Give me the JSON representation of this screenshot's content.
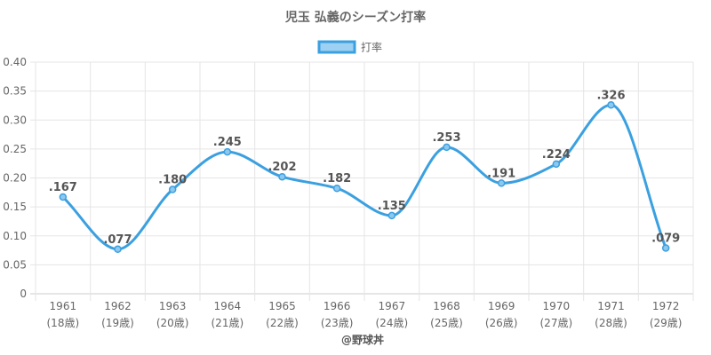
{
  "chart_data": {
    "type": "line",
    "title": "児玉 弘義のシーズン打率",
    "legend": {
      "placement": "top-center",
      "entries": [
        "打率"
      ]
    },
    "categories": [
      "1961",
      "1962",
      "1963",
      "1964",
      "1965",
      "1966",
      "1967",
      "1968",
      "1969",
      "1970",
      "1971",
      "1972"
    ],
    "category_sublabels": [
      "(18歳)",
      "(19歳)",
      "(20歳)",
      "(21歳)",
      "(22歳)",
      "(23歳)",
      "(24歳)",
      "(25歳)",
      "(26歳)",
      "(27歳)",
      "(28歳)",
      "(29歳)"
    ],
    "series": [
      {
        "name": "打率",
        "values": [
          0.167,
          0.077,
          0.18,
          0.245,
          0.202,
          0.182,
          0.135,
          0.253,
          0.191,
          0.224,
          0.326,
          0.079
        ],
        "labels": [
          ".167",
          ".077",
          ".180",
          ".245",
          ".202",
          ".182",
          ".135",
          ".253",
          ".191",
          ".224",
          ".326",
          ".079"
        ],
        "color": "#3ba0e0"
      }
    ],
    "ylim": [
      0,
      0.4
    ],
    "yticks": [
      0,
      0.05,
      0.1,
      0.15,
      0.2,
      0.25,
      0.3,
      0.35,
      0.4
    ],
    "ytick_labels": [
      "0",
      "0.05",
      "0.10",
      "0.15",
      "0.20",
      "0.25",
      "0.30",
      "0.35",
      "0.40"
    ],
    "grid": true,
    "credit": "@野球丼"
  },
  "colors": {
    "line": "#3ba0e0",
    "legend_fill": "#9dd0f2",
    "grid": "#e5e5e5",
    "axis": "#cccccc",
    "text": "#666666"
  }
}
